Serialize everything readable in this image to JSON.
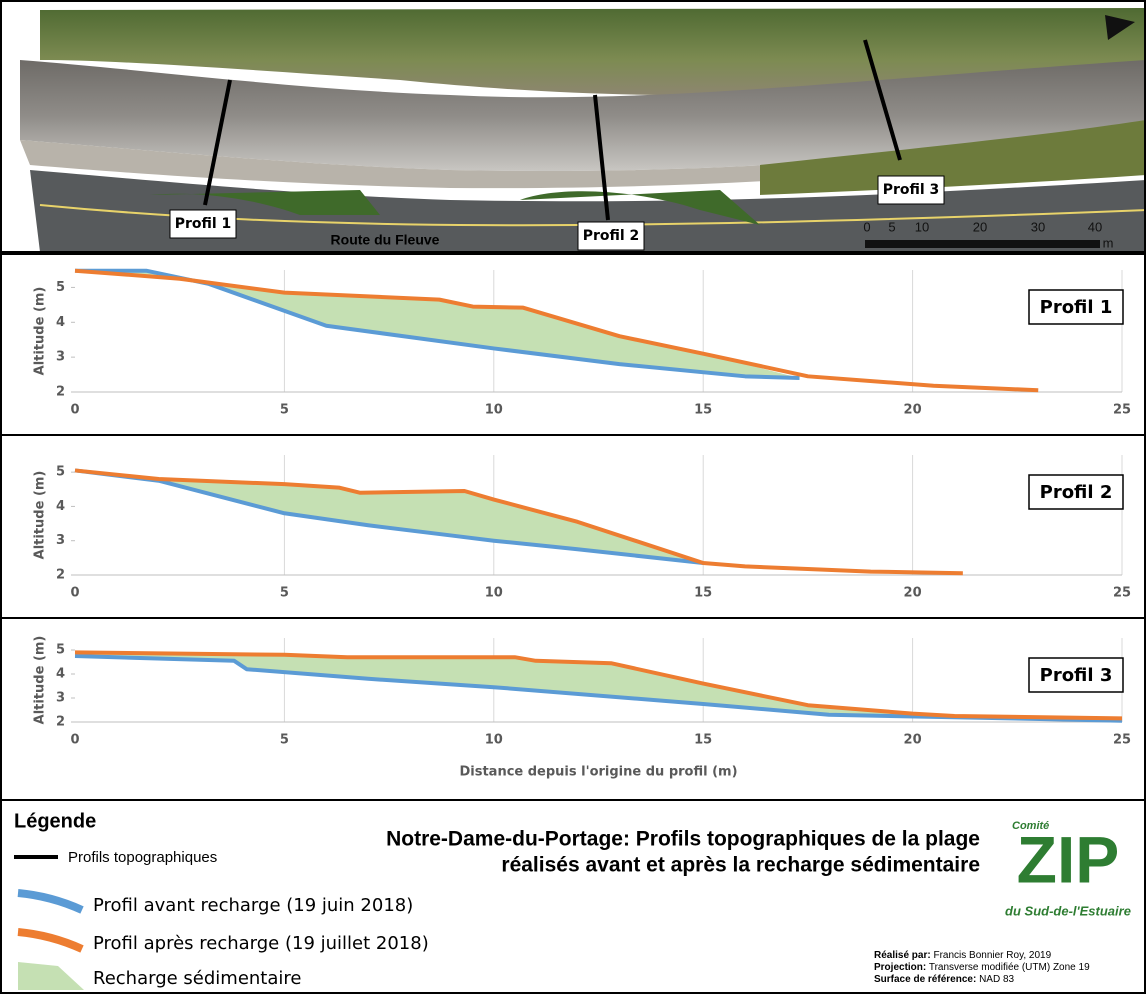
{
  "map": {
    "labels": [
      "Profil 1",
      "Profil 2",
      "Profil 3"
    ],
    "road": "Route du Fleuve",
    "scale_ticks": [
      "0",
      "5",
      "10",
      "20",
      "30",
      "40"
    ],
    "scale_unit": "m"
  },
  "chart_data": [
    {
      "type": "line",
      "label": "Profil 1",
      "ylabel": "Altitude (m)",
      "xlim": [
        0,
        25
      ],
      "xticks": [
        0,
        5,
        10,
        15,
        20,
        25
      ],
      "ylim": [
        2,
        5.5
      ],
      "yticks": [
        2,
        3,
        4,
        5
      ],
      "grid": "x",
      "fill_between": "#c5e0b3",
      "series": [
        {
          "name": "Profil avant recharge (19 juin 2018)",
          "color": "#5b9bd5",
          "x": [
            0,
            1.7,
            3.2,
            6,
            10,
            13,
            16,
            17.3
          ],
          "values": [
            5.48,
            5.48,
            5.1,
            3.9,
            3.25,
            2.8,
            2.45,
            2.4
          ]
        },
        {
          "name": "Profil après recharge (19 juillet 2018)",
          "color": "#ed7d31",
          "x": [
            0,
            2.5,
            5,
            8.7,
            9.5,
            10.7,
            13,
            15,
            17.5,
            20.5,
            23
          ],
          "values": [
            5.48,
            5.25,
            4.85,
            4.65,
            4.45,
            4.42,
            3.6,
            3.1,
            2.45,
            2.18,
            2.05
          ]
        }
      ]
    },
    {
      "type": "line",
      "label": "Profil 2",
      "ylabel": "Altitude (m)",
      "xlim": [
        0,
        25
      ],
      "xticks": [
        0,
        5,
        10,
        15,
        20,
        25
      ],
      "ylim": [
        2,
        5.5
      ],
      "yticks": [
        2,
        3,
        4,
        5
      ],
      "grid": "x",
      "fill_between": "#c5e0b3",
      "series": [
        {
          "name": "Profil avant recharge (19 juin 2018)",
          "color": "#5b9bd5",
          "x": [
            0,
            2,
            5,
            7,
            9,
            10,
            12,
            15
          ],
          "values": [
            5.05,
            4.75,
            3.8,
            3.45,
            3.15,
            3.0,
            2.75,
            2.35
          ]
        },
        {
          "name": "Profil après recharge (19 juillet 2018)",
          "color": "#ed7d31",
          "x": [
            0,
            2,
            5,
            6.3,
            6.8,
            9.3,
            10,
            12,
            15,
            16,
            18,
            19,
            21.2
          ],
          "values": [
            5.05,
            4.8,
            4.65,
            4.55,
            4.4,
            4.45,
            4.2,
            3.55,
            2.35,
            2.25,
            2.15,
            2.1,
            2.05
          ]
        }
      ]
    },
    {
      "type": "line",
      "label": "Profil 3",
      "ylabel": "Altitude (m)",
      "xlabel": "Distance depuis l'origine du profil (m)",
      "xlim": [
        0,
        25
      ],
      "xticks": [
        0,
        5,
        10,
        15,
        20,
        25
      ],
      "ylim": [
        2,
        5.5
      ],
      "yticks": [
        2,
        3,
        4,
        5
      ],
      "grid": "x",
      "fill_between": "#c5e0b3",
      "series": [
        {
          "name": "Profil avant recharge (19 juin 2018)",
          "color": "#5b9bd5",
          "x": [
            0,
            3.8,
            4.1,
            7,
            10,
            15,
            18,
            21,
            25
          ],
          "values": [
            4.75,
            4.55,
            4.2,
            3.8,
            3.45,
            2.75,
            2.3,
            2.2,
            2.05
          ]
        },
        {
          "name": "Profil après recharge (19 juillet 2018)",
          "color": "#ed7d31",
          "x": [
            0,
            5,
            6.5,
            10.5,
            11,
            12.8,
            15,
            17.5,
            20,
            21,
            25
          ],
          "values": [
            4.9,
            4.8,
            4.7,
            4.7,
            4.55,
            4.45,
            3.6,
            2.7,
            2.35,
            2.25,
            2.15
          ]
        }
      ]
    }
  ],
  "legend": {
    "title": "Légende",
    "profiles": "Profils topographiques",
    "recharge": "Recharge sédimentaire"
  },
  "title": [
    "Notre-Dame-du-Portage: Profils topographiques de la plage",
    "réalisés avant et après la recharge sédimentaire"
  ],
  "logo": {
    "top": "Comité",
    "main": "ZIP",
    "bottom": "du Sud-de-l'Estuaire"
  },
  "credits": [
    {
      "key": "Réalisé par:",
      "text": "Francis Bonnier Roy, 2019"
    },
    {
      "key": "Projection:",
      "text": "Transverse modifiée (UTM) Zone 19"
    },
    {
      "key": "Surface de référence:",
      "text": "NAD 83"
    }
  ]
}
